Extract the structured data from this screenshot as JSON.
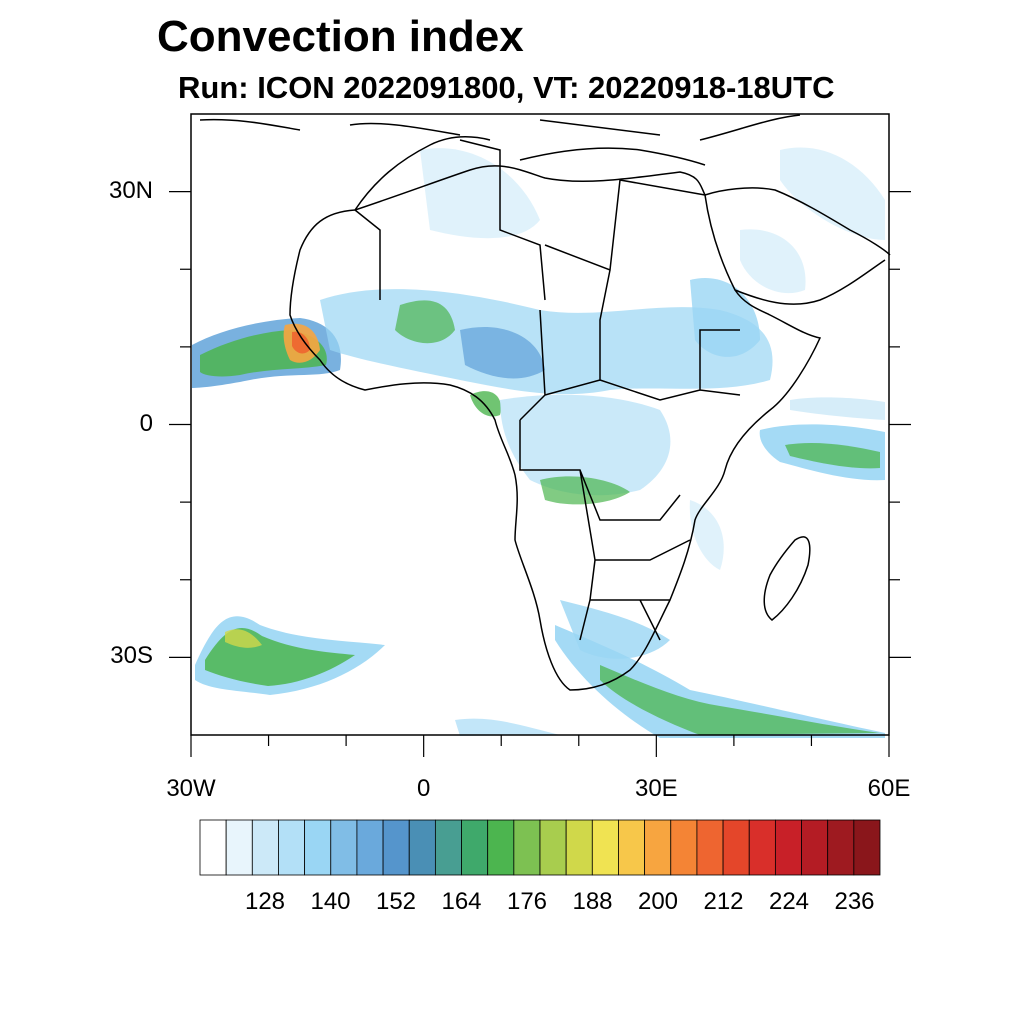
{
  "title": "Convection index",
  "subtitle": "Run: ICON 2022091800,  VT: 20220918-18UTC",
  "lat_labels": [
    {
      "label": "30N",
      "lat": 30
    },
    {
      "label": "0",
      "lat": 0
    },
    {
      "label": "30S",
      "lat": -30
    }
  ],
  "lon_labels": [
    {
      "label": "30W",
      "lon": -30
    },
    {
      "label": "0",
      "lon": 0
    },
    {
      "label": "30E",
      "lon": 30
    },
    {
      "label": "60E",
      "lon": 60
    }
  ],
  "map_extent": {
    "lon_min": -30,
    "lon_max": 60,
    "lat_min": -40,
    "lat_max": 40
  },
  "colorbar": {
    "colors": [
      "#ffffff",
      "#e8f5fc",
      "#cce9f8",
      "#b3e0f7",
      "#9ad6f4",
      "#80bde6",
      "#6aa9dc",
      "#5595cc",
      "#4a8fb5",
      "#489e92",
      "#3fa96b",
      "#4cb54f",
      "#7dc152",
      "#a8cd4e",
      "#d0d84a",
      "#f0e352",
      "#f7c74a",
      "#f7a540",
      "#f48435",
      "#ee6530",
      "#e4462a",
      "#d92f2a",
      "#c82028",
      "#b41c24",
      "#9e1a20",
      "#8a161b"
    ],
    "tick_labels": [
      "128",
      "140",
      "152",
      "164",
      "176",
      "188",
      "200",
      "212",
      "224",
      "236"
    ]
  }
}
